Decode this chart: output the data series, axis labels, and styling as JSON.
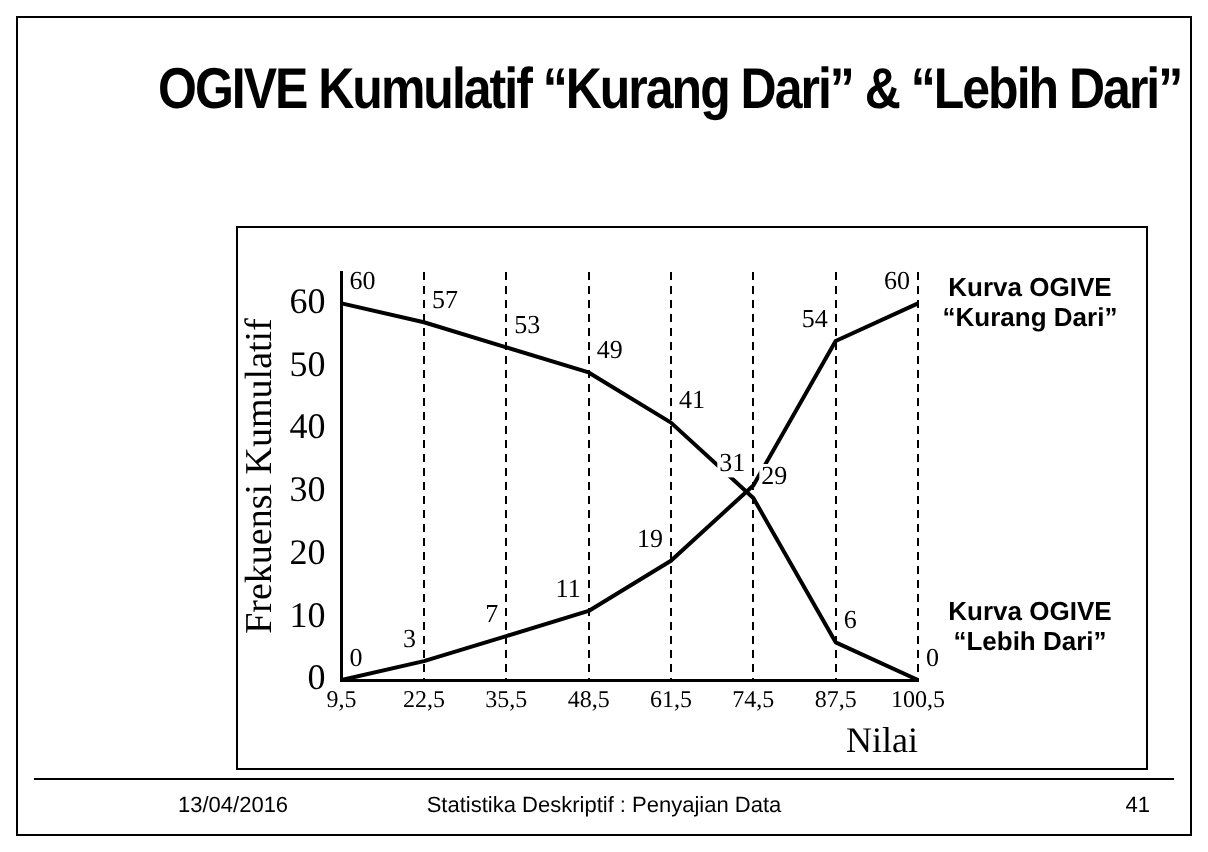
{
  "chart_data": {
    "type": "line",
    "title": "OGIVE Kumulatif “Kurang Dari” & “Lebih Dari”",
    "xlabel": "Nilai",
    "ylabel": "Frekuensi Kumulatif",
    "categories": [
      "9,5",
      "22,5",
      "35,5",
      "48,5",
      "61,5",
      "74,5",
      "87,5",
      "100,5"
    ],
    "series": [
      {
        "name": "Kurva OGIVE “Kurang Dari”",
        "color": "#000000",
        "values": [
          0,
          3,
          7,
          11,
          19,
          31,
          54,
          60
        ]
      },
      {
        "name": "Kurva OGIVE “Lebih Dari”",
        "color": "#000000",
        "values": [
          60,
          57,
          53,
          49,
          41,
          29,
          6,
          0
        ]
      }
    ],
    "ylim": [
      0,
      65
    ],
    "yticks": [
      0,
      10,
      20,
      30,
      40,
      50,
      60
    ],
    "grid": "x",
    "line_style": "solid",
    "marker": "none",
    "data_labels": true,
    "annotations": [
      "13/04/2016",
      "Statistika Deskriptif : Penyajian Data",
      "41"
    ]
  }
}
